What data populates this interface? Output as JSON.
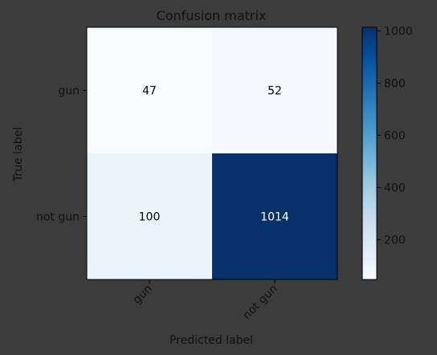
{
  "chart_data": {
    "type": "heatmap",
    "title": "Confusion matrix",
    "xlabel": "Predicted label",
    "ylabel": "True label",
    "x_categories": [
      "gun",
      "not gun"
    ],
    "y_categories": [
      "gun",
      "not gun"
    ],
    "values": [
      [
        47,
        52
      ],
      [
        100,
        1014
      ]
    ],
    "colormap": "Blues",
    "colorbar": {
      "ticks": [
        200,
        400,
        600,
        800,
        1000
      ],
      "range": [
        47,
        1014
      ]
    },
    "colors": {
      "background": "#3c3c3c",
      "text_axis": "#111111",
      "cell_text_light": "#000000",
      "cell_text_dark": "#ffffff"
    }
  }
}
